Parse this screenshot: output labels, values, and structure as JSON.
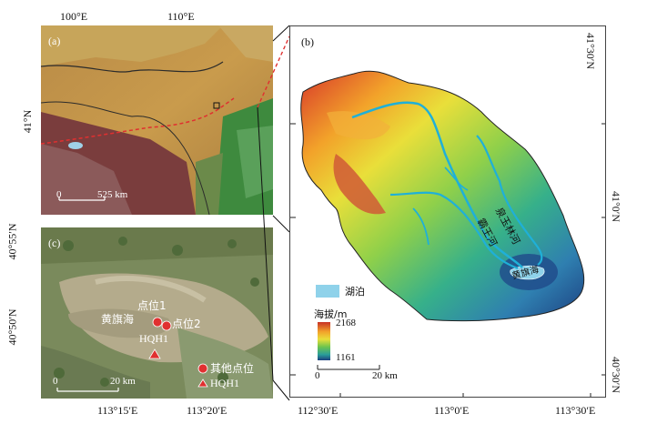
{
  "panel_a": {
    "label": "(a)",
    "top_ticks": [
      "100°E",
      "110°E"
    ],
    "left_tick": "41°N",
    "scale": {
      "zero": "0",
      "end": "525 km"
    }
  },
  "panel_b": {
    "label": "(b)",
    "right_ticks": [
      "41°30′N",
      "41°0′N",
      "40°30′N"
    ],
    "bottom_ticks": [
      "112°30′E",
      "113°0′E",
      "113°30′E"
    ],
    "rivers": [
      "泉玉林河",
      "霸王河"
    ],
    "lake_label": "黄旗海",
    "legend": {
      "lake": "湖泊",
      "elev_title": "海拔/m",
      "elev_max": "2168",
      "elev_min": "1161",
      "scale": {
        "zero": "0",
        "end": "20 km"
      }
    }
  },
  "panel_c": {
    "label": "(c)",
    "left_ticks": [
      "40°55′N",
      "40°50′N"
    ],
    "bottom_ticks": [
      "113°15′E",
      "113°20′E"
    ],
    "lake_label": "黄旗海",
    "points": [
      "点位1",
      "点位2",
      "HQH1"
    ],
    "legend": {
      "other": "其他点位",
      "hqh": "HQH1"
    },
    "scale": {
      "zero": "0",
      "end": "20 km"
    }
  }
}
